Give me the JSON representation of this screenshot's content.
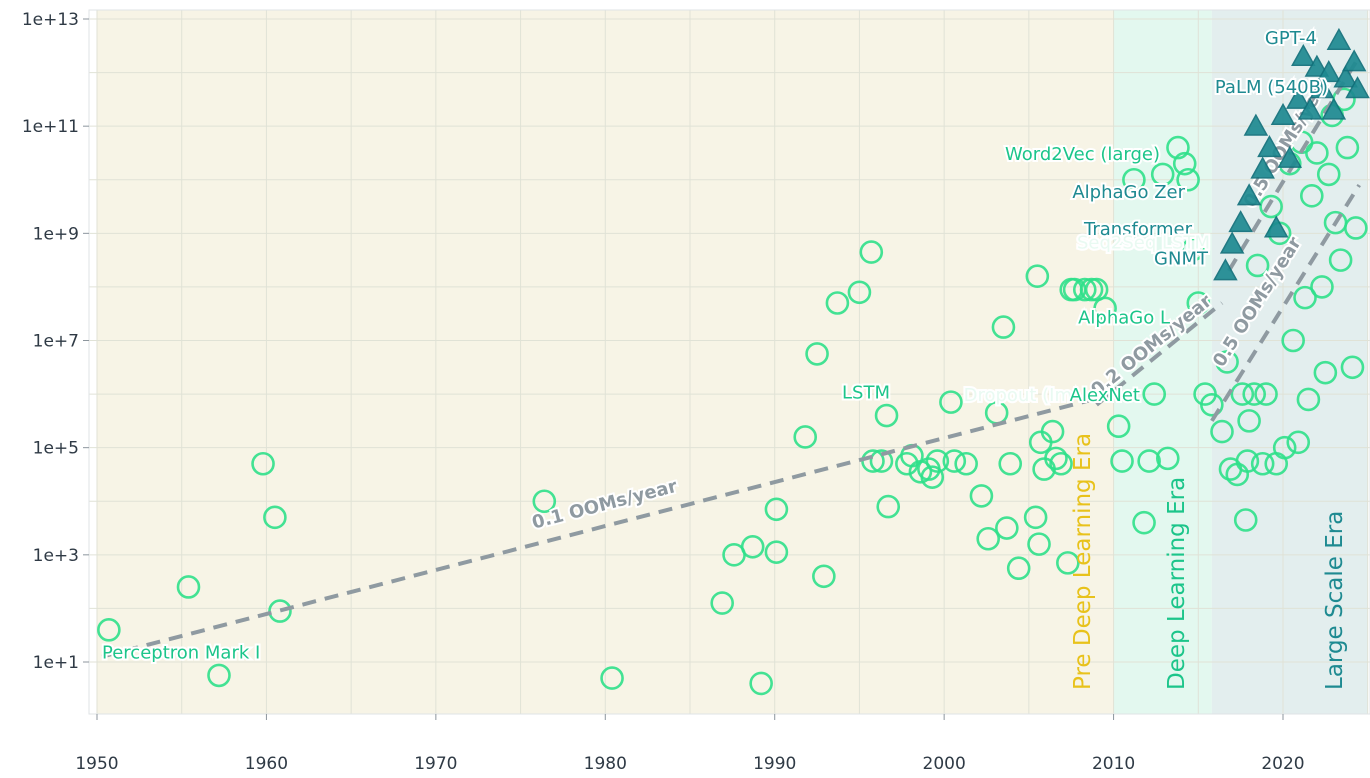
{
  "chart_data": {
    "type": "scatter",
    "title": "",
    "xlabel": "",
    "ylabel": "",
    "xlim": [
      1950,
      2025
    ],
    "ylim_log10": [
      0,
      13
    ],
    "log_y": true,
    "grid": true,
    "x_ticks": [
      "1950",
      "1960",
      "1970",
      "1980",
      "1990",
      "2000",
      "2010",
      "2020"
    ],
    "y_ticks": [
      {
        "exp": 1,
        "label": "1e+1"
      },
      {
        "exp": 3,
        "label": "1e+3"
      },
      {
        "exp": 5,
        "label": "1e+5"
      },
      {
        "exp": 7,
        "label": "1e+7"
      },
      {
        "exp": 9,
        "label": "1e+9"
      },
      {
        "exp": 11,
        "label": "1e+11"
      },
      {
        "exp": 13,
        "label": "1e+13"
      }
    ],
    "eras": [
      {
        "name": "Pre Deep Learning Era",
        "start": 1950,
        "end": 2010,
        "color": "#f7f4e6",
        "label_color": "#e8c21b"
      },
      {
        "name": "Deep Learning Era",
        "start": 2010,
        "end": 2015.8,
        "color": "#e3f8ef",
        "label_color": "#1cc58a"
      },
      {
        "name": "Large Scale Era",
        "start": 2015.8,
        "end": 2025,
        "color": "#e3eeee",
        "label_color": "#1e8a91"
      }
    ],
    "trends": [
      {
        "label": "0.1 OOMs/year",
        "start": [
          1950.3,
          1.1
        ],
        "end": [
          2010,
          6.0
        ]
      },
      {
        "label": "0.2 OOMs/year",
        "start": [
          2009,
          5.8
        ],
        "end": [
          2016.4,
          7.7
        ]
      },
      {
        "label": "0.5 OOMs/year",
        "start": [
          2015.8,
          5.5
        ],
        "end": [
          2024.5,
          9.9
        ]
      },
      {
        "label": "0.5 OOMs/year",
        "start": [
          2016.8,
          8.3
        ],
        "end": [
          2024.5,
          12.3
        ]
      }
    ],
    "series": [
      {
        "marker": "circle",
        "color": "#2fe08a",
        "points": [
          [
            1950.7,
            1.6
          ],
          [
            1955.4,
            2.4
          ],
          [
            1957.2,
            0.75
          ],
          [
            1959.8,
            4.7
          ],
          [
            1960.5,
            3.7
          ],
          [
            1960.8,
            1.95
          ],
          [
            1976.4,
            4.0
          ],
          [
            1980.4,
            0.7
          ],
          [
            1986.9,
            2.1
          ],
          [
            1987.6,
            3.0
          ],
          [
            1988.7,
            3.15
          ],
          [
            1989.2,
            0.6
          ],
          [
            1990.1,
            3.05
          ],
          [
            1990.1,
            3.85
          ],
          [
            1991.8,
            5.2
          ],
          [
            1992.5,
            6.75
          ],
          [
            1992.9,
            2.6
          ],
          [
            1993.7,
            7.7
          ],
          [
            1995.0,
            7.9
          ],
          [
            1995.7,
            8.65
          ],
          [
            1995.8,
            4.75
          ],
          [
            1996.3,
            4.75
          ],
          [
            1996.6,
            5.6
          ],
          [
            1996.7,
            3.9
          ],
          [
            1997.8,
            4.7
          ],
          [
            1998.1,
            4.85
          ],
          [
            1998.6,
            4.55
          ],
          [
            1999.1,
            4.6
          ],
          [
            1999.3,
            4.45
          ],
          [
            1999.6,
            4.75
          ],
          [
            2000.4,
            5.85
          ],
          [
            2000.6,
            4.75
          ],
          [
            2001.3,
            4.7
          ],
          [
            2002.2,
            4.1
          ],
          [
            2002.6,
            3.3
          ],
          [
            2003.1,
            5.65
          ],
          [
            2003.5,
            7.25
          ],
          [
            2003.7,
            3.5
          ],
          [
            2003.9,
            4.7
          ],
          [
            2004.4,
            2.75
          ],
          [
            2005.4,
            3.7
          ],
          [
            2005.5,
            8.2
          ],
          [
            2005.6,
            3.2
          ],
          [
            2005.7,
            5.1
          ],
          [
            2005.9,
            4.6
          ],
          [
            2006.4,
            5.3
          ],
          [
            2006.6,
            4.8
          ],
          [
            2006.9,
            4.7
          ],
          [
            2007.3,
            2.85
          ],
          [
            2007.5,
            7.95
          ],
          [
            2007.7,
            7.95
          ],
          [
            2008.3,
            7.95
          ],
          [
            2008.7,
            7.95
          ],
          [
            2009.0,
            7.95
          ],
          [
            2009.5,
            7.6
          ],
          [
            2010.3,
            5.4
          ],
          [
            2010.5,
            4.75
          ],
          [
            2011.2,
            10.0
          ],
          [
            2011.8,
            3.6
          ],
          [
            2012.1,
            4.75
          ],
          [
            2012.4,
            6.0
          ],
          [
            2012.9,
            10.1
          ],
          [
            2013.2,
            4.8
          ],
          [
            2013.8,
            10.6
          ],
          [
            2014.2,
            10.3
          ],
          [
            2014.4,
            10.0
          ],
          [
            2014.7,
            8.7
          ],
          [
            2015.0,
            7.7
          ],
          [
            2015.4,
            6.0
          ],
          [
            2015.8,
            5.8
          ],
          [
            2016.4,
            5.3
          ],
          [
            2016.7,
            6.6
          ],
          [
            2016.9,
            4.6
          ],
          [
            2017.3,
            4.5
          ],
          [
            2017.6,
            6.0
          ],
          [
            2017.8,
            3.65
          ],
          [
            2017.9,
            4.75
          ],
          [
            2018.0,
            5.5
          ],
          [
            2018.3,
            6.0
          ],
          [
            2018.5,
            8.4
          ],
          [
            2018.8,
            4.7
          ],
          [
            2019.0,
            6.0
          ],
          [
            2019.3,
            9.5
          ],
          [
            2019.6,
            4.7
          ],
          [
            2019.8,
            9.0
          ],
          [
            2020.1,
            5.0
          ],
          [
            2020.4,
            10.3
          ],
          [
            2020.6,
            7.0
          ],
          [
            2020.9,
            5.1
          ],
          [
            2021.1,
            10.7
          ],
          [
            2021.3,
            7.8
          ],
          [
            2021.5,
            5.9
          ],
          [
            2021.7,
            9.7
          ],
          [
            2022.0,
            10.5
          ],
          [
            2022.3,
            8.0
          ],
          [
            2022.5,
            6.4
          ],
          [
            2022.7,
            10.1
          ],
          [
            2022.9,
            11.2
          ],
          [
            2023.1,
            9.2
          ],
          [
            2023.4,
            8.5
          ],
          [
            2023.6,
            11.5
          ],
          [
            2023.8,
            10.6
          ],
          [
            2024.1,
            6.5
          ],
          [
            2024.3,
            9.1
          ]
        ]
      },
      {
        "marker": "triangle",
        "color": "#1e8a91",
        "points": [
          [
            2016.6,
            8.3
          ],
          [
            2017.0,
            8.8
          ],
          [
            2017.5,
            9.2
          ],
          [
            2018.0,
            9.7
          ],
          [
            2018.4,
            11.0
          ],
          [
            2018.8,
            10.2
          ],
          [
            2019.2,
            10.6
          ],
          [
            2019.6,
            9.1
          ],
          [
            2020.0,
            11.2
          ],
          [
            2020.4,
            10.4
          ],
          [
            2020.9,
            11.5
          ],
          [
            2021.2,
            12.3
          ],
          [
            2021.6,
            11.3
          ],
          [
            2022.0,
            12.1
          ],
          [
            2022.3,
            11.7
          ],
          [
            2022.7,
            12.0
          ],
          [
            2023.0,
            11.3
          ],
          [
            2023.3,
            12.6
          ],
          [
            2023.7,
            11.9
          ],
          [
            2024.2,
            12.2
          ],
          [
            2024.4,
            11.7
          ]
        ]
      }
    ],
    "annotations": [
      {
        "text": "GPT-4",
        "x": 2023.2,
        "y": 12.66,
        "color": "#1e8a91"
      },
      {
        "text": "PaLM (540B)",
        "x": 2022.0,
        "y": 11.75,
        "color": "#1e8a91"
      },
      {
        "text": "Word2Vec (large)",
        "x": 2013.4,
        "y": 10.5,
        "color": "#1cc58a"
      },
      {
        "text": "AlphaGo Zer",
        "x": 2016.7,
        "y": 9.79,
        "color": "#1e8a91"
      },
      {
        "text": "Transformer",
        "x": 2016.6,
        "y": 9.1,
        "color": "#1e8a91"
      },
      {
        "text": "Seq2Seq LSTM",
        "x": 2014.6,
        "y": 8.85,
        "color": "#e9faf2"
      },
      {
        "text": "GNMT",
        "x": 2016.6,
        "y": 8.55,
        "color": "#1e8a91"
      },
      {
        "text": "AlphaGo L",
        "x": 2013.7,
        "y": 7.45,
        "color": "#1cc58a"
      },
      {
        "text": "LSTM",
        "x": 1997.3,
        "y": 6.05,
        "color": "#1cc58a"
      },
      {
        "text": "Dropout (Im",
        "x": 2000.5,
        "y": 6.0,
        "color": "#e9faf2"
      },
      {
        "text": "AlexNet",
        "x": 2012.0,
        "y": 6.0,
        "color": "#1cc58a"
      },
      {
        "text": "Perceptron Mark I",
        "x": 1950.3,
        "y": 1.2,
        "color": "#1cc58a"
      }
    ]
  }
}
